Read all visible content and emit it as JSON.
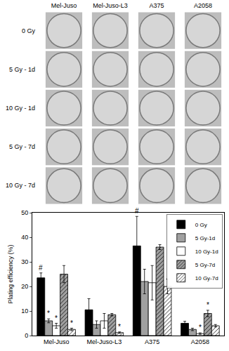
{
  "plates": {
    "columns": [
      "Mel-Juso",
      "Mel-Juso-L3",
      "A375",
      "A2058"
    ],
    "rows": [
      "0 Gy",
      "5 Gy - 1d",
      "10 Gy - 1d",
      "5 Gy - 7d",
      "10 Gy - 7d"
    ]
  },
  "chart_data": {
    "type": "bar",
    "y_label": "Plating efficiency (%)",
    "categories": [
      "Mel-Juso",
      "Mel-Juso-L3",
      "A375",
      "A2058"
    ],
    "series": [
      {
        "name": "0 Gy",
        "color": "#000000",
        "marker": "solid",
        "values": [
          23.5,
          10.5,
          36.5,
          5
        ],
        "error": [
          2,
          4.5,
          12,
          0.8
        ]
      },
      {
        "name": "5 Gy-1d",
        "color": "#a0a0a0",
        "marker": "solid",
        "values": [
          6,
          4.5,
          22,
          2.5
        ],
        "error": [
          0.8,
          1.5,
          5,
          0.5
        ]
      },
      {
        "name": "10 Gy-1d",
        "color": "#ffffff",
        "marker": "solid",
        "values": [
          4,
          6,
          21.5,
          0.8
        ],
        "error": [
          1,
          3,
          7,
          0.3
        ]
      },
      {
        "name": "5 Gy-7d",
        "color": "#a0a0a0",
        "marker": "hatched",
        "values": [
          25,
          8.5,
          36,
          9
        ],
        "error": [
          3.5,
          0.5,
          1,
          1.3
        ]
      },
      {
        "name": "10 Gy-7d",
        "color": "#ffffff",
        "marker": "hatched",
        "values": [
          2.5,
          1.2,
          20,
          4
        ],
        "error": [
          0.5,
          0.3,
          3,
          0.5
        ]
      }
    ],
    "annotations": [
      {
        "category": "Mel-Juso",
        "series": "0 Gy",
        "text": "#"
      },
      {
        "category": "Mel-Juso",
        "series": "5 Gy-1d",
        "text": "*"
      },
      {
        "category": "Mel-Juso",
        "series": "10 Gy-1d",
        "text": "*"
      },
      {
        "category": "Mel-Juso",
        "series": "10 Gy-7d",
        "text": "*"
      },
      {
        "category": "Mel-Juso-L3",
        "series": "10 Gy-7d",
        "text": "*"
      },
      {
        "category": "A375",
        "series": "0 Gy",
        "text": "#"
      },
      {
        "category": "A2058",
        "series": "10 Gy-1d",
        "text": "*"
      },
      {
        "category": "A2058",
        "series": "5 Gy-7d",
        "text": "*"
      }
    ],
    "ylim": [
      0,
      50
    ],
    "yticks": [
      0,
      10,
      20,
      30,
      40,
      50
    ],
    "legend": "top-right",
    "grid": false
  }
}
